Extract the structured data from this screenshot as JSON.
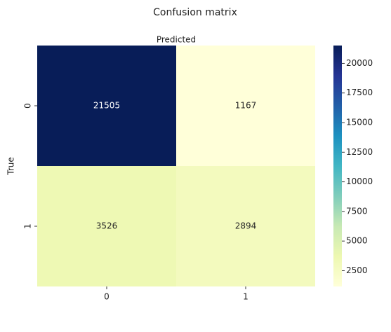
{
  "chart_data": {
    "type": "heatmap",
    "title": "Confusion matrix",
    "x_label": "Predicted",
    "y_label": "True",
    "x_categories": [
      "0",
      "1"
    ],
    "y_categories": [
      "0",
      "1"
    ],
    "values": [
      [
        21505,
        1167
      ],
      [
        3526,
        2894
      ]
    ],
    "colormap": "YlGnBu",
    "clim": [
      1167,
      21505
    ],
    "cticks": [
      2500,
      5000,
      7500,
      10000,
      12500,
      15000,
      17500,
      20000
    ]
  }
}
